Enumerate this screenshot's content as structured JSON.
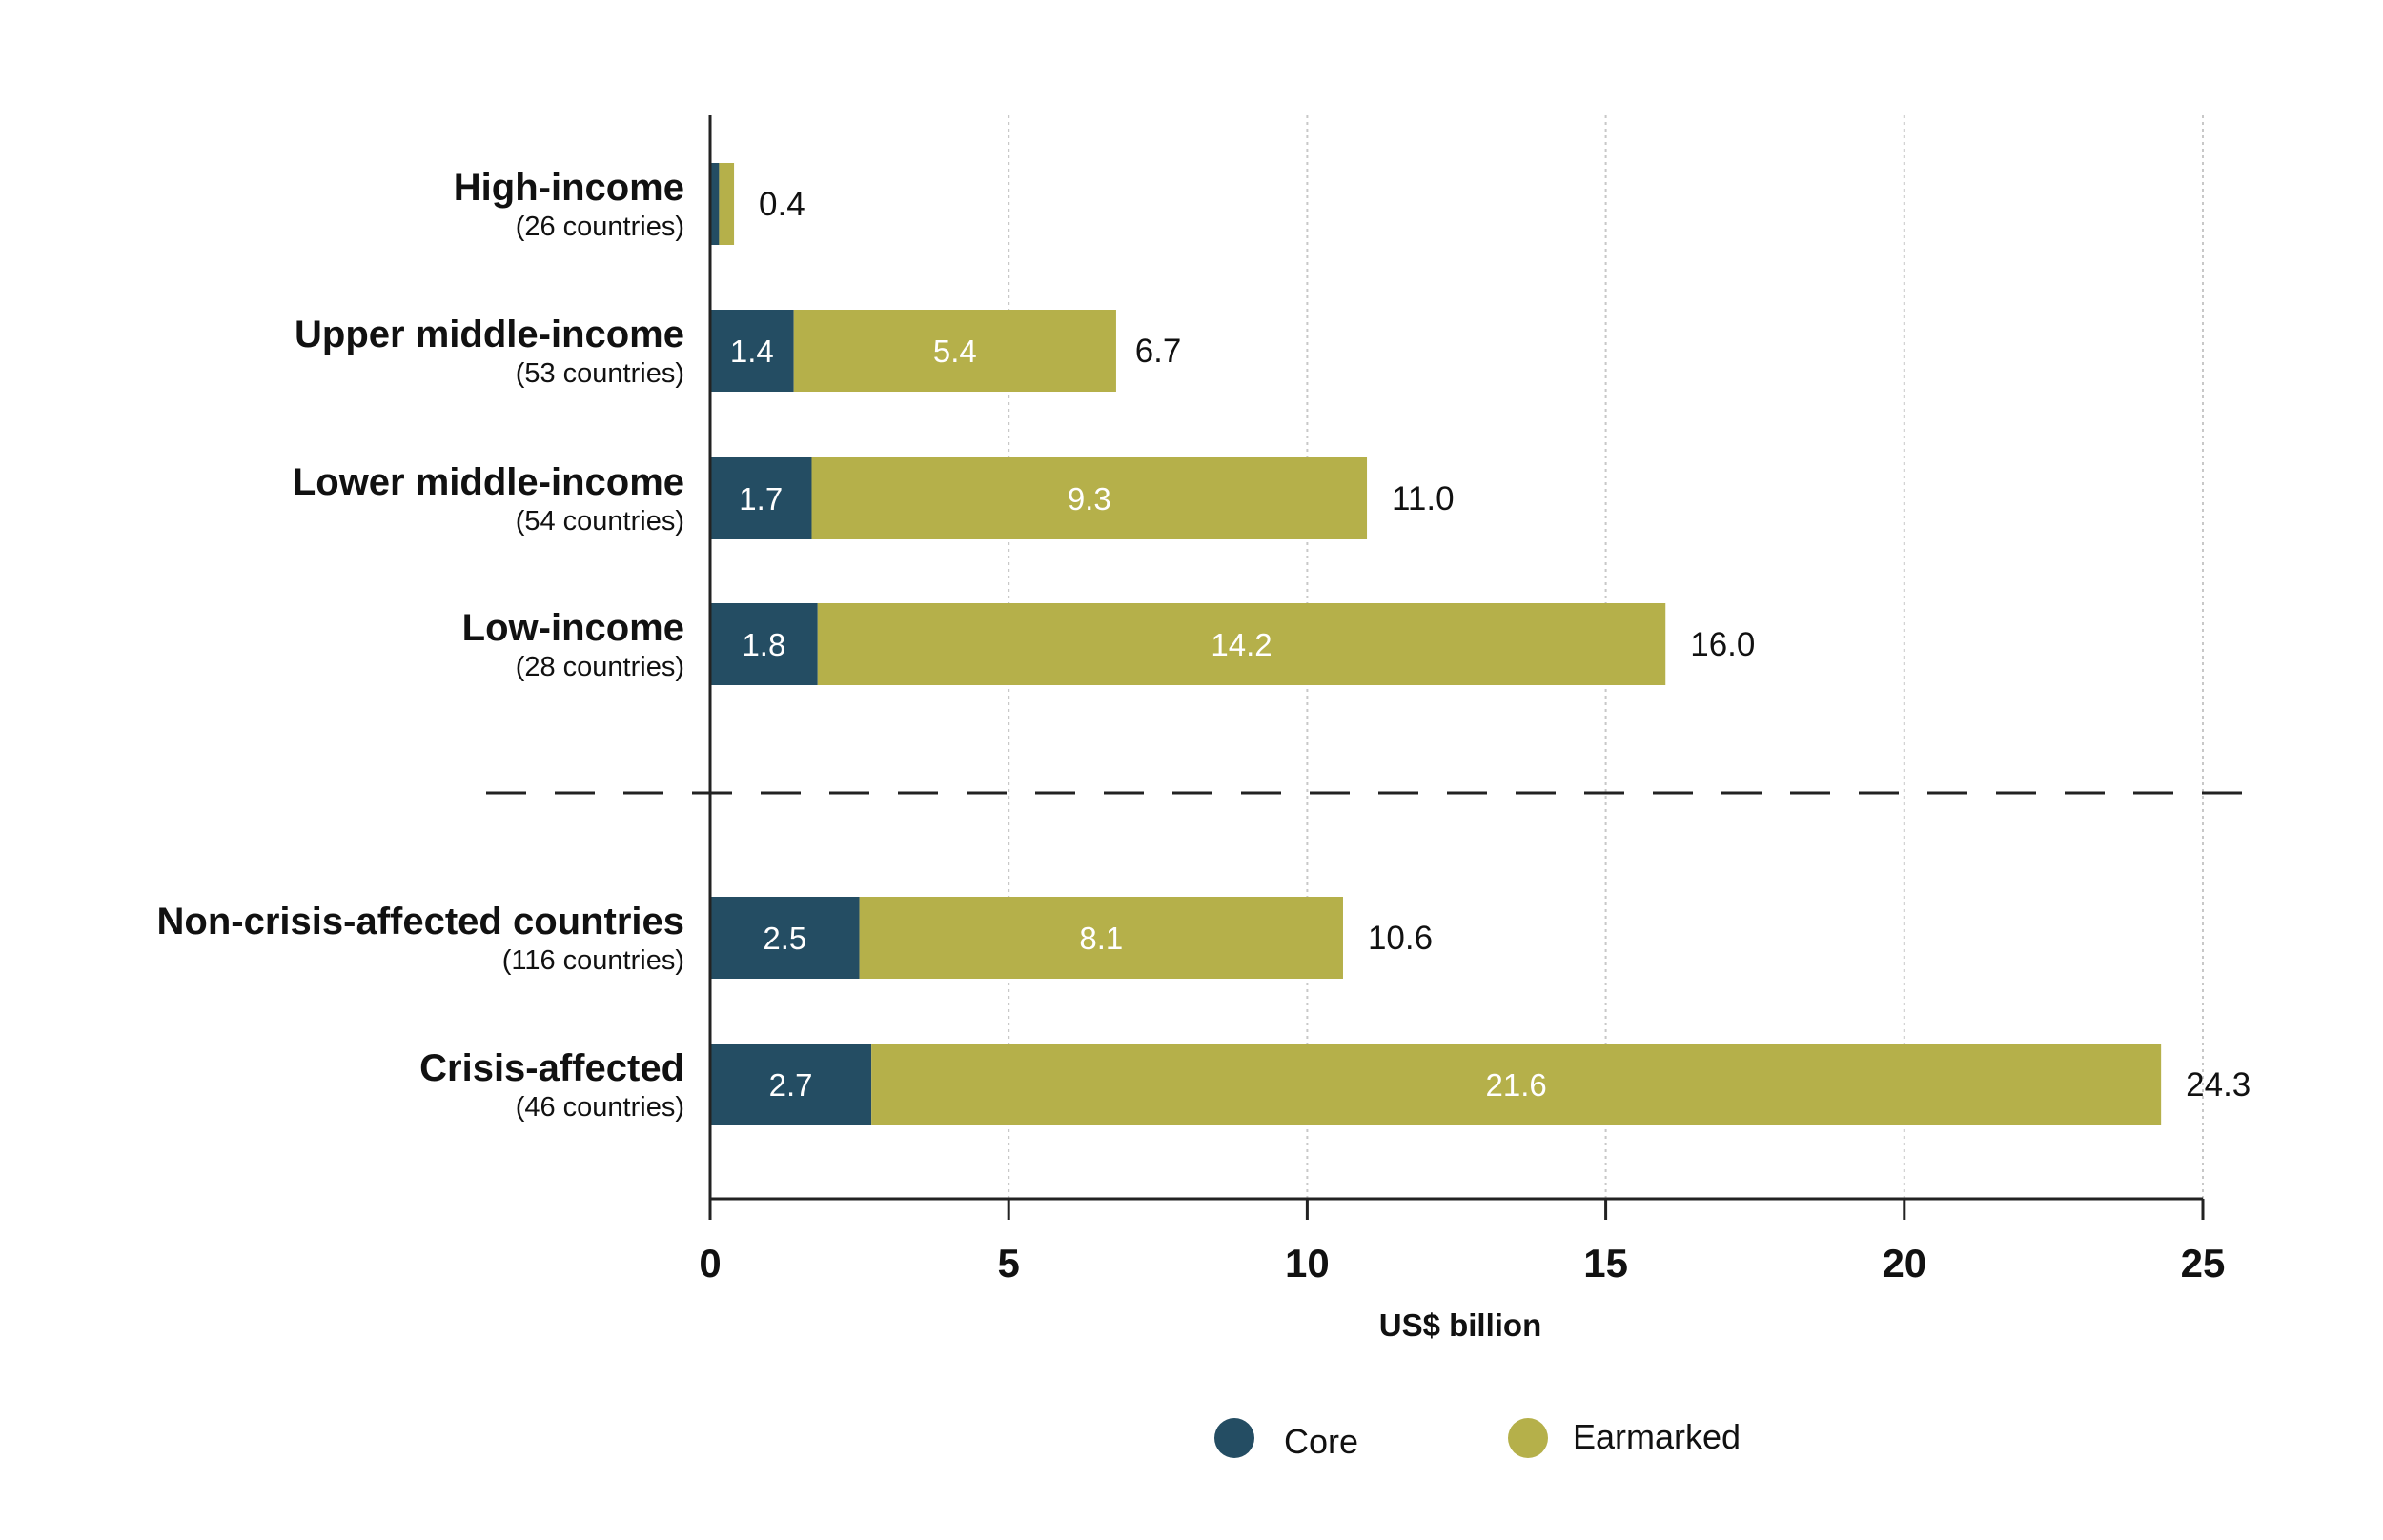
{
  "chart_data": {
    "type": "bar",
    "orientation": "horizontal",
    "stacked": true,
    "title": "",
    "xlabel": "US$ billion",
    "ylabel": "",
    "xlim": [
      0,
      25
    ],
    "xticks": [
      0,
      5,
      10,
      15,
      20,
      25
    ],
    "grid": "vertical dotted",
    "legend_position": "bottom-center",
    "categories": [
      {
        "name": "High-income",
        "sub": "(26 countries)",
        "group": "income"
      },
      {
        "name": "Upper middle-income",
        "sub": "(53 countries)",
        "group": "income"
      },
      {
        "name": "Lower middle-income",
        "sub": "(54 countries)",
        "group": "income"
      },
      {
        "name": "Low-income",
        "sub": "(28 countries)",
        "group": "income"
      },
      {
        "name": "Non-crisis-affected countries",
        "sub": "(116 countries)",
        "group": "crisis"
      },
      {
        "name": "Crisis-affected",
        "sub": "(46 countries)",
        "group": "crisis"
      }
    ],
    "series": [
      {
        "name": "Core",
        "color": "#244d63",
        "values": [
          0.15,
          1.4,
          1.7,
          1.8,
          2.5,
          2.7
        ],
        "labels": [
          "",
          "1.4",
          "1.7",
          "1.8",
          "2.5",
          "2.7"
        ]
      },
      {
        "name": "Earmarked",
        "color": "#b5b04a",
        "values": [
          0.25,
          5.4,
          9.3,
          14.2,
          8.1,
          21.6
        ],
        "labels": [
          "",
          "5.4",
          "9.3",
          "14.2",
          "8.1",
          "21.6"
        ]
      }
    ],
    "totals": [
      "0.4",
      "6.7",
      "11.0",
      "16.0",
      "10.6",
      "24.3"
    ],
    "total_values": [
      0.4,
      6.7,
      11.0,
      16.0,
      10.6,
      24.3
    ],
    "separator": "dashed line between income groups and crisis groups"
  }
}
